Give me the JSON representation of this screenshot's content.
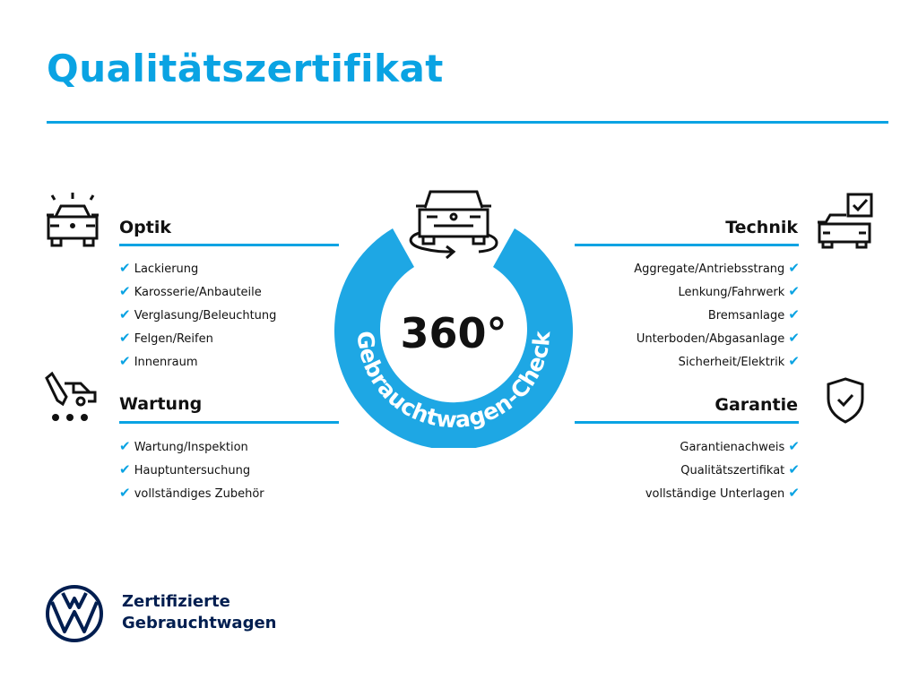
{
  "title": "Qualitätszertifikat",
  "accent": "#0aa3e3",
  "center": {
    "number": "360°",
    "ring_text": "Gebrauchtwagen-Check",
    "icon": "car-rotate-icon"
  },
  "sections": {
    "optik": {
      "heading": "Optik",
      "icon": "car-lights-icon",
      "items": [
        "Lackierung",
        "Karosserie/Anbauteile",
        "Verglasung/Beleuchtung",
        "Felgen/Reifen",
        "Innenraum"
      ]
    },
    "wartung": {
      "heading": "Wartung",
      "icon": "service-car-icon",
      "items": [
        "Wartung/Inspektion",
        "Hauptuntersuchung",
        "vollständiges Zubehör"
      ]
    },
    "technik": {
      "heading": "Technik",
      "icon": "car-checkbox-icon",
      "items": [
        "Aggregate/Antriebsstrang",
        "Lenkung/Fahrwerk",
        "Bremsanlage",
        "Unterboden/Abgasanlage",
        "Sicherheit/Elektrik"
      ]
    },
    "garantie": {
      "heading": "Garantie",
      "icon": "shield-check-icon",
      "items": [
        "Garantienachweis",
        "Qualitätszertifikat",
        "vollständige Unterlagen"
      ]
    }
  },
  "check": "✔",
  "footer": {
    "line1": "Zertifizierte",
    "line2": "Gebrauchtwagen",
    "logo": "VW"
  }
}
